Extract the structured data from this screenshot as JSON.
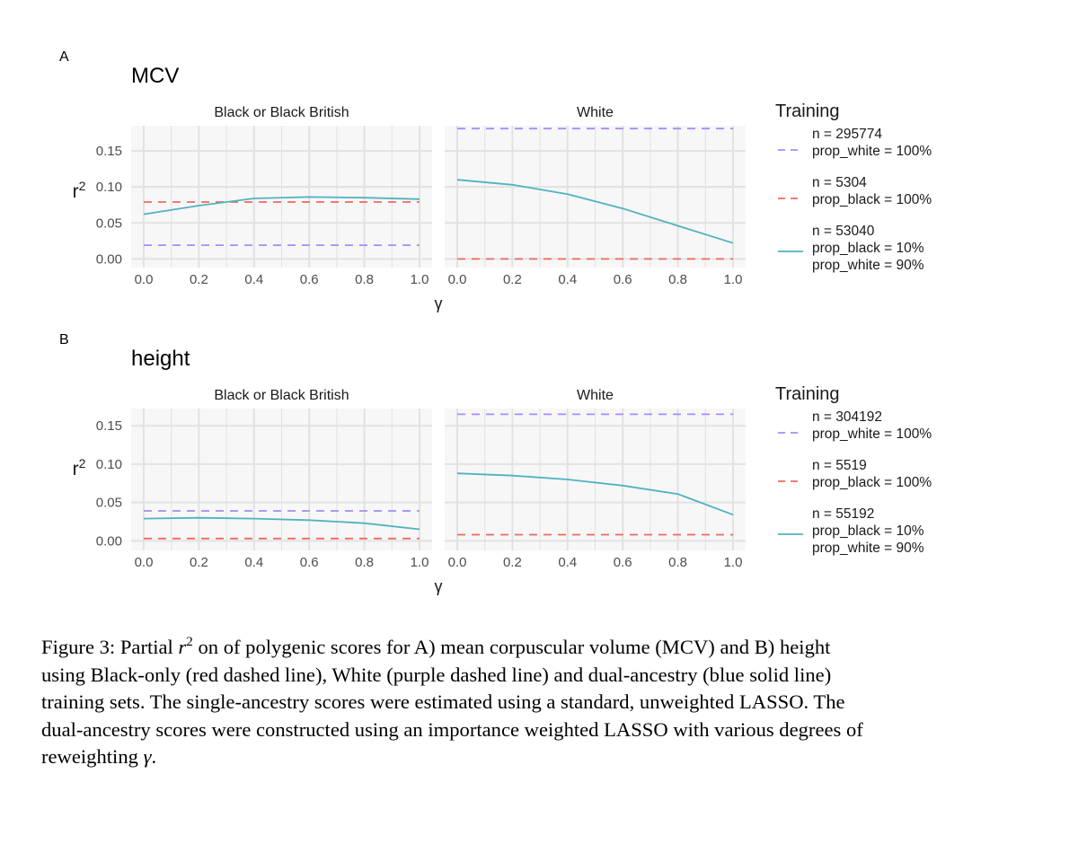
{
  "figure": {
    "caption_lines": [
      {
        "parts": [
          {
            "text": "Figure 3:  Partial ",
            "style": "normal"
          },
          {
            "text": "r",
            "style": "italic"
          },
          {
            "text": "2",
            "style": "sup"
          },
          {
            "text": " on of polygenic scores for A) mean corpuscular volume (MCV) and B) height",
            "style": "normal"
          }
        ]
      },
      {
        "parts": [
          {
            "text": "using Black-only (red dashed line), White (purple dashed line) and dual-ancestry (blue solid line)",
            "style": "normal"
          }
        ]
      },
      {
        "parts": [
          {
            "text": "training sets.  The single-ancestry scores were estimated using a standard, unweighted LASSO. The",
            "style": "normal"
          }
        ]
      },
      {
        "parts": [
          {
            "text": "dual-ancestry scores were constructed using an importance weighted LASSO with various degrees of",
            "style": "normal"
          }
        ]
      },
      {
        "parts": [
          {
            "text": "reweighting ",
            "style": "normal"
          },
          {
            "text": "γ",
            "style": "italic"
          },
          {
            "text": ".",
            "style": "normal"
          }
        ]
      }
    ]
  },
  "colors": {
    "white_training": "#a78bfa",
    "black_training": "#ef6a5e",
    "dual_ancestry": "#4fb3bf",
    "panel_background": "#f7f7f7",
    "gridline": "#e2e2e2",
    "axis_text": "#4d4d4d"
  },
  "chart_data": [
    {
      "type": "line",
      "panel_label": "A",
      "title": "MCV",
      "ylabel": "r",
      "ylabel_sup": "2",
      "xlabel": "γ",
      "facets": [
        "Black or Black British",
        "White"
      ],
      "x_ticks": [
        "0.0",
        "0.2",
        "0.4",
        "0.6",
        "0.8",
        "1.0"
      ],
      "xlim": [
        0,
        1
      ],
      "y_ticks": [
        {
          "value": 0.0,
          "label": "0.00"
        },
        {
          "value": 0.05,
          "label": "0.05"
        },
        {
          "value": 0.1,
          "label": "0.10"
        },
        {
          "value": 0.15,
          "label": "0.15"
        }
      ],
      "ylim": [
        -0.012,
        0.185
      ],
      "grid": true,
      "legend": {
        "title": "Training",
        "position": "right",
        "entries": [
          {
            "lines": [
              "n = 295774",
              "prop_white = 100%"
            ],
            "series": "white",
            "dash": true
          },
          {
            "lines": [
              "n = 5304",
              "prop_black = 100%"
            ],
            "series": "black",
            "dash": true
          },
          {
            "lines": [
              "n = 53040",
              "prop_black = 10%",
              "prop_white = 90%"
            ],
            "series": "dual",
            "dash": false
          }
        ]
      },
      "x": [
        0,
        0.2,
        0.4,
        0.6,
        0.8,
        1.0
      ],
      "series": [
        {
          "key": "white",
          "dash": true,
          "values_by_facet": [
            [
              0.019,
              0.019,
              0.019,
              0.019,
              0.019,
              0.019
            ],
            [
              0.181,
              0.181,
              0.181,
              0.181,
              0.181,
              0.181
            ]
          ]
        },
        {
          "key": "black",
          "dash": true,
          "values_by_facet": [
            [
              0.079,
              0.079,
              0.079,
              0.079,
              0.079,
              0.079
            ],
            [
              0.0,
              0.0,
              0.0,
              0.0,
              0.0,
              0.0
            ]
          ]
        },
        {
          "key": "dual",
          "dash": false,
          "values_by_facet": [
            [
              0.062,
              0.074,
              0.084,
              0.086,
              0.085,
              0.083
            ],
            [
              0.11,
              0.103,
              0.09,
              0.07,
              0.046,
              0.022
            ]
          ]
        }
      ]
    },
    {
      "type": "line",
      "panel_label": "B",
      "title": "height",
      "ylabel": "r",
      "ylabel_sup": "2",
      "xlabel": "γ",
      "facets": [
        "Black or Black British",
        "White"
      ],
      "x_ticks": [
        "0.0",
        "0.2",
        "0.4",
        "0.6",
        "0.8",
        "1.0"
      ],
      "xlim": [
        0,
        1
      ],
      "y_ticks": [
        {
          "value": 0.0,
          "label": "0.00"
        },
        {
          "value": 0.05,
          "label": "0.05"
        },
        {
          "value": 0.1,
          "label": "0.10"
        },
        {
          "value": 0.15,
          "label": "0.15"
        }
      ],
      "ylim": [
        -0.0125,
        0.1725
      ],
      "grid": true,
      "legend": {
        "title": "Training",
        "position": "right",
        "entries": [
          {
            "lines": [
              "n = 304192",
              "prop_white = 100%"
            ],
            "series": "white",
            "dash": true
          },
          {
            "lines": [
              "n = 5519",
              "prop_black = 100%"
            ],
            "series": "black",
            "dash": true
          },
          {
            "lines": [
              "n = 55192",
              "prop_black = 10%",
              "prop_white = 90%"
            ],
            "series": "dual",
            "dash": false
          }
        ]
      },
      "x": [
        0,
        0.2,
        0.4,
        0.6,
        0.8,
        1.0
      ],
      "series": [
        {
          "key": "white",
          "dash": true,
          "values_by_facet": [
            [
              0.039,
              0.039,
              0.039,
              0.039,
              0.039,
              0.039
            ],
            [
              0.165,
              0.165,
              0.165,
              0.165,
              0.165,
              0.165
            ]
          ]
        },
        {
          "key": "black",
          "dash": true,
          "values_by_facet": [
            [
              0.003,
              0.003,
              0.003,
              0.003,
              0.003,
              0.003
            ],
            [
              0.008,
              0.008,
              0.008,
              0.008,
              0.008,
              0.008
            ]
          ]
        },
        {
          "key": "dual",
          "dash": false,
          "values_by_facet": [
            [
              0.029,
              0.03,
              0.029,
              0.027,
              0.023,
              0.015
            ],
            [
              0.088,
              0.085,
              0.08,
              0.072,
              0.061,
              0.034
            ]
          ]
        }
      ]
    }
  ]
}
